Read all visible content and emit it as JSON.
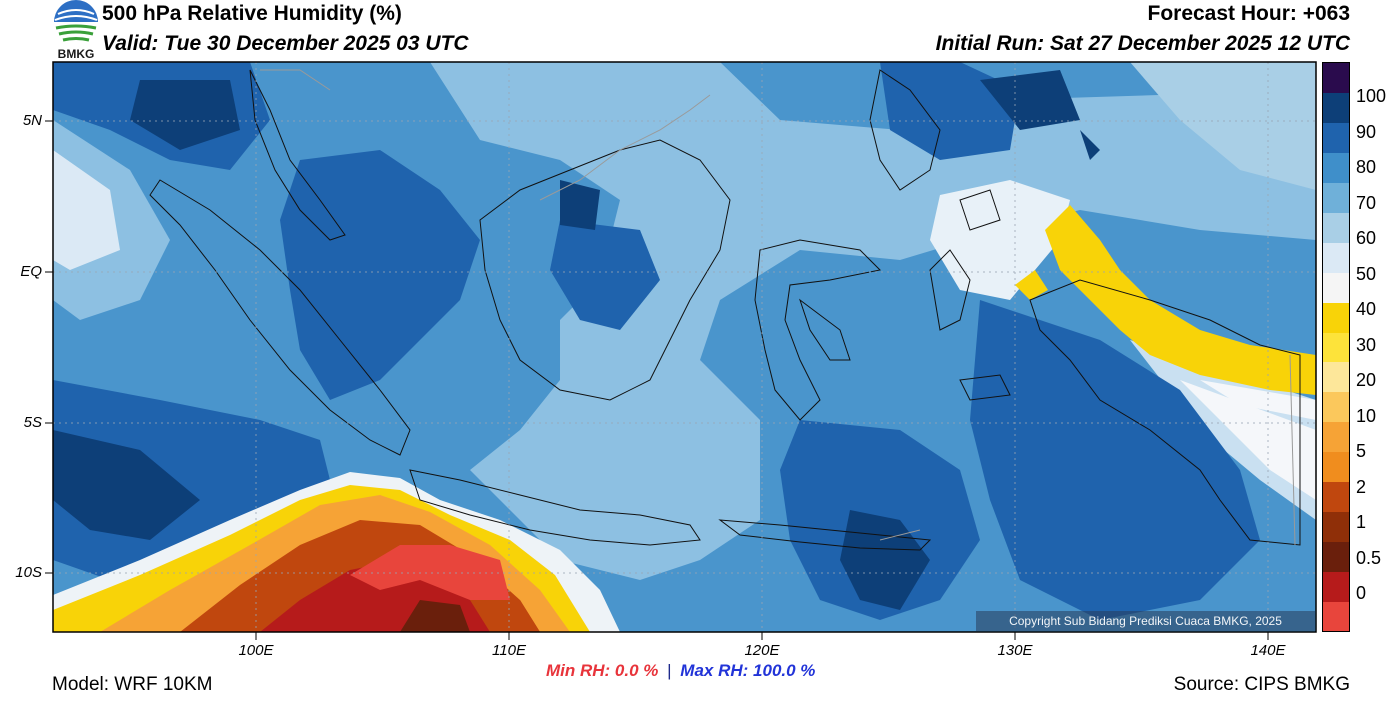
{
  "header": {
    "title": "500 hPa Relative Humidity (%)",
    "valid": "Valid: Tue 30 December 2025 03 UTC",
    "forecast_hour": "Forecast Hour: +063",
    "initial_run": "Initial Run: Sat 27 December 2025 12 UTC",
    "logo_text": "BMKG"
  },
  "map": {
    "lat_labels": [
      "5N",
      "EQ",
      "5S",
      "10S"
    ],
    "lon_labels": [
      "100E",
      "110E",
      "120E",
      "130E",
      "140E"
    ],
    "copyright": "Copyright Sub Bidang Prediksi Cuaca BMKG, 2025"
  },
  "colorbar": {
    "labels": [
      "100",
      "90",
      "80",
      "70",
      "60",
      "50",
      "40",
      "30",
      "20",
      "10",
      "5",
      "2",
      "1",
      "0.5",
      "0"
    ],
    "colors": [
      "#e8453c",
      "#b61b1b",
      "#6a1f0c",
      "#8f2f08",
      "#c0470e",
      "#f08d1e",
      "#f6a336",
      "#fbc85c",
      "#fde79a",
      "#fde33a",
      "#f8d308",
      "#f5f5f5",
      "#dbe9f5",
      "#a9cfe6",
      "#6fb0d9",
      "#3f8fca",
      "#1f63ad",
      "#0d3f78",
      "#2a0b4d"
    ]
  },
  "stats": {
    "min_rh": "Min RH:   0.0 %",
    "separator": "|",
    "max_rh": "Max RH: 100.0 %"
  },
  "footer": {
    "model": "Model: WRF 10KM",
    "source": "Source: CIPS BMKG"
  }
}
